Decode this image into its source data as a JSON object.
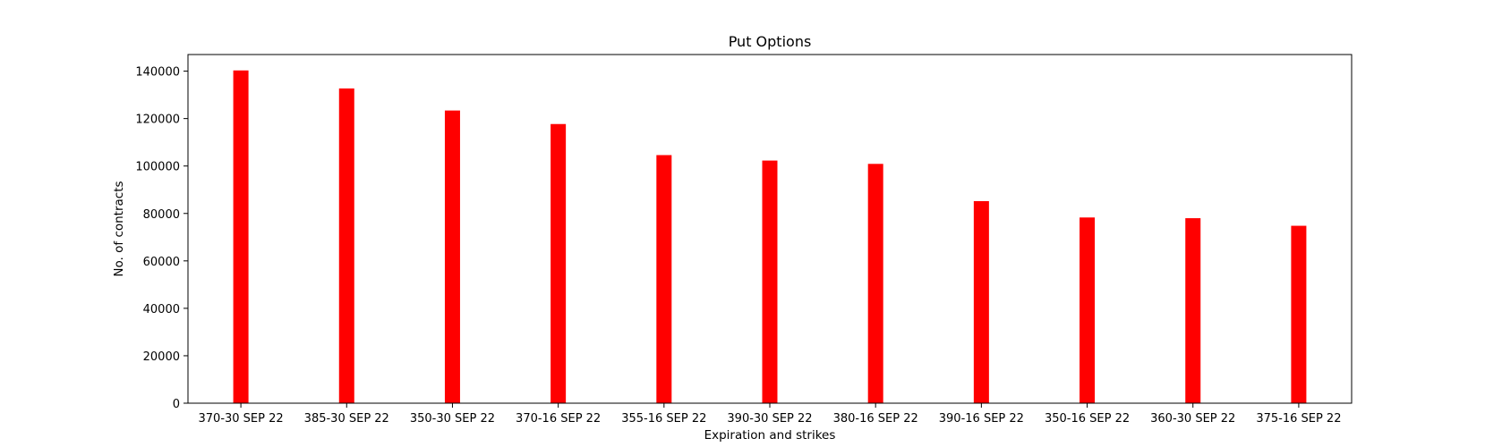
{
  "chart_data": {
    "type": "bar",
    "title": "Put Options",
    "xlabel": "Expiration and strikes",
    "ylabel": "No. of contracts",
    "categories": [
      "370-30 SEP 22",
      "385-30 SEP 22",
      "350-30 SEP 22",
      "370-16 SEP 22",
      "355-16 SEP 22",
      "390-30 SEP 22",
      "380-16 SEP 22",
      "390-16 SEP 22",
      "350-16 SEP 22",
      "360-30 SEP 22",
      "375-16 SEP 22"
    ],
    "values": [
      140300,
      132700,
      123400,
      117700,
      104600,
      102300,
      100900,
      85200,
      78300,
      78000,
      74800
    ],
    "ylim": [
      0,
      147000
    ],
    "yticks": [
      0,
      20000,
      40000,
      60000,
      80000,
      100000,
      120000,
      140000
    ],
    "bar_color": "#ff0000",
    "grid": false,
    "legend": "none"
  }
}
